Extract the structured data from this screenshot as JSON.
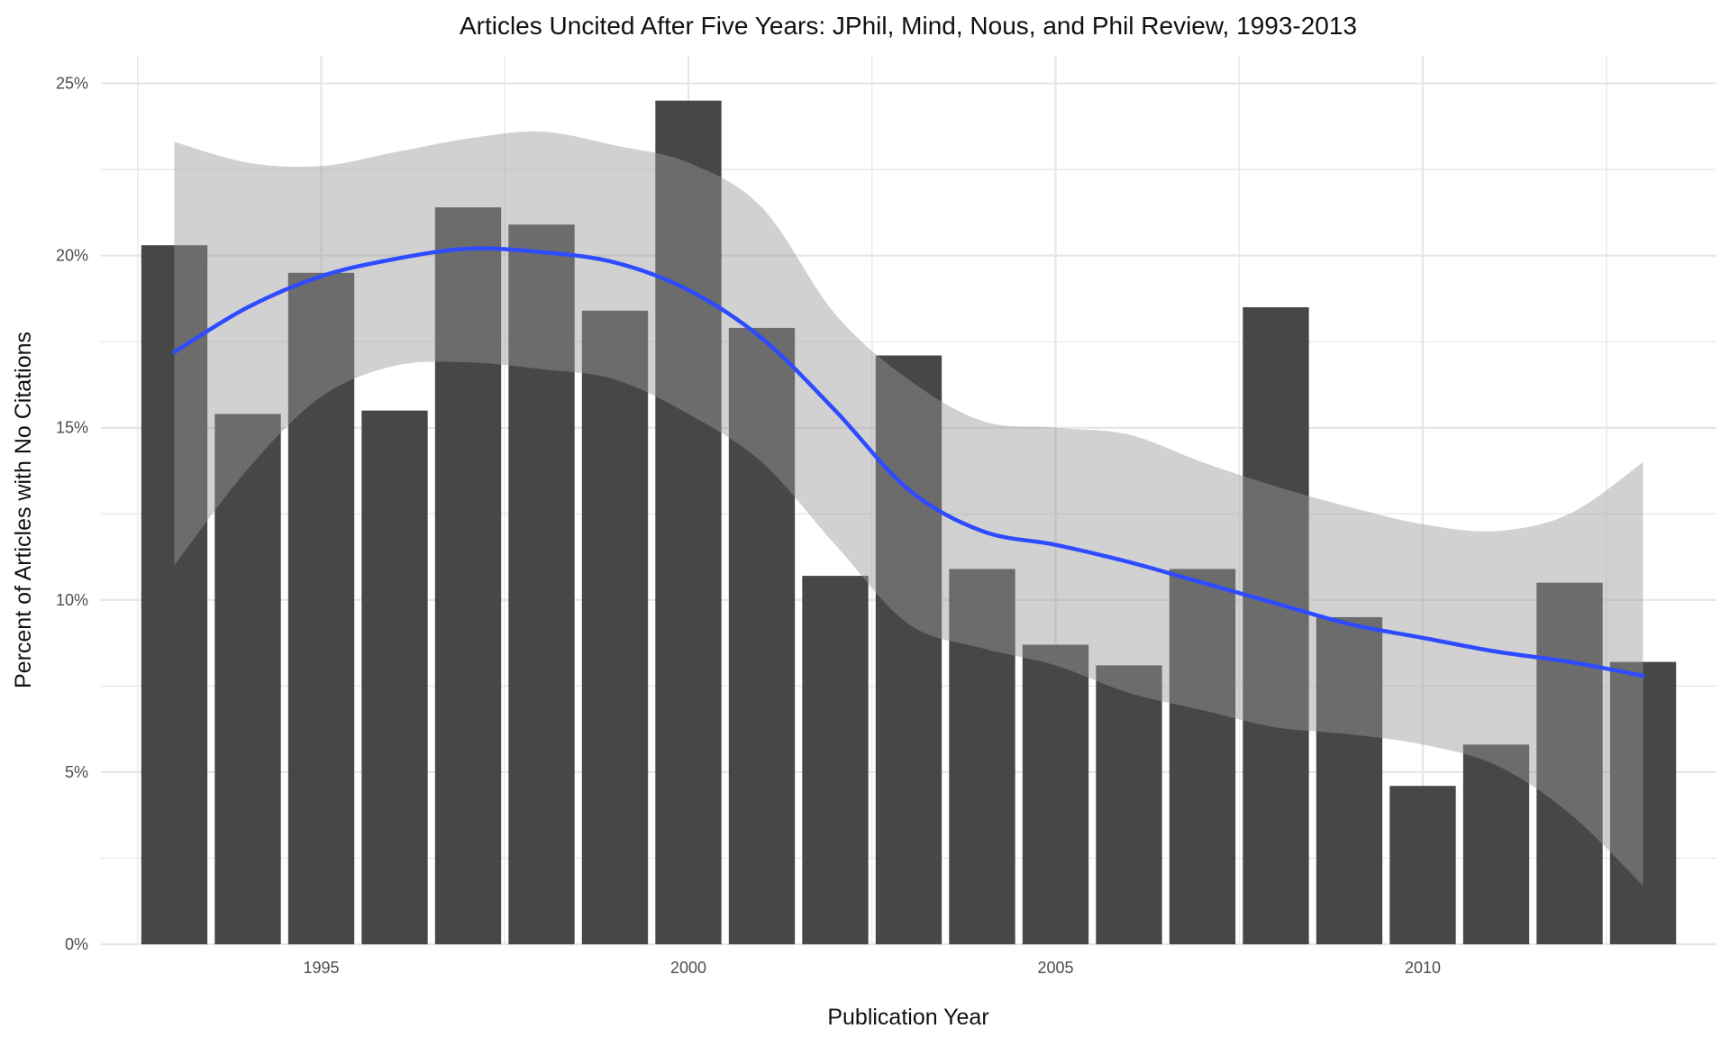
{
  "chart_data": {
    "type": "bar",
    "title": "Articles Uncited After Five Years: JPhil, Mind, Nous, and Phil Review, 1993-2013",
    "xlabel": "Publication Year",
    "ylabel": "Percent of Articles with No Citations",
    "x": [
      1993,
      1994,
      1995,
      1996,
      1997,
      1998,
      1999,
      2000,
      2001,
      2002,
      2003,
      2004,
      2005,
      2006,
      2007,
      2008,
      2009,
      2010,
      2011,
      2012,
      2013
    ],
    "values": [
      20.3,
      15.4,
      19.5,
      15.5,
      21.4,
      20.9,
      18.4,
      24.5,
      17.9,
      10.7,
      17.1,
      10.9,
      8.7,
      8.1,
      10.9,
      18.5,
      9.5,
      4.6,
      5.8,
      10.5,
      8.2
    ],
    "xlim": [
      1992,
      2014
    ],
    "ylim": [
      0,
      25.8
    ],
    "x_ticks": [
      1995,
      2000,
      2005,
      2010
    ],
    "x_tick_labels": [
      "1995",
      "2000",
      "2005",
      "2010"
    ],
    "y_ticks": [
      0,
      5,
      10,
      15,
      20,
      25
    ],
    "y_tick_labels": [
      "0%",
      "5%",
      "10%",
      "15%",
      "20%",
      "25%"
    ],
    "grid": true,
    "smooth": {
      "x": [
        1993,
        1994,
        1995,
        1996,
        1997,
        1998,
        1999,
        2000,
        2001,
        2002,
        2003,
        2004,
        2005,
        2006,
        2007,
        2008,
        2009,
        2010,
        2011,
        2012,
        2013
      ],
      "fit": [
        17.2,
        18.5,
        19.4,
        19.9,
        20.2,
        20.1,
        19.8,
        19.0,
        17.6,
        15.5,
        13.2,
        12.0,
        11.6,
        11.1,
        10.5,
        9.9,
        9.3,
        8.9,
        8.5,
        8.2,
        7.8
      ],
      "lower": [
        11.0,
        13.8,
        15.9,
        16.8,
        16.9,
        16.7,
        16.4,
        15.4,
        14.0,
        11.6,
        9.3,
        8.6,
        8.1,
        7.3,
        6.8,
        6.3,
        6.1,
        5.8,
        5.2,
        3.8,
        1.7
      ],
      "upper": [
        23.3,
        22.7,
        22.6,
        23.0,
        23.4,
        23.6,
        23.2,
        22.7,
        21.4,
        18.3,
        16.4,
        15.2,
        15.0,
        14.8,
        14.0,
        13.3,
        12.7,
        12.2,
        12.0,
        12.5,
        14.0
      ]
    },
    "colors": {
      "bar": "#474747",
      "ribbon": "#9a9a9a",
      "line": "#2e4bff",
      "grid": "#e6e6e6"
    }
  }
}
